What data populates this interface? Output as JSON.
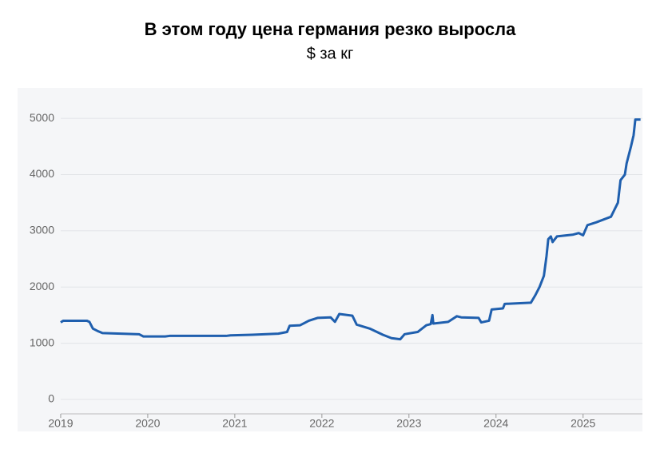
{
  "chart_data": {
    "type": "line",
    "title": "В этом году цена германия резко выросла",
    "subtitle": "$ за кг",
    "x": [
      2019.0,
      2019.03,
      2019.3,
      2019.33,
      2019.37,
      2019.42,
      2019.48,
      2019.9,
      2019.95,
      2020.2,
      2020.25,
      2020.9,
      2020.95,
      2021.2,
      2021.5,
      2021.6,
      2021.63,
      2021.75,
      2021.85,
      2021.95,
      2022.1,
      2022.15,
      2022.2,
      2022.35,
      2022.4,
      2022.55,
      2022.7,
      2022.8,
      2022.9,
      2022.95,
      2023.1,
      2023.2,
      2023.25,
      2023.27,
      2023.28,
      2023.45,
      2023.55,
      2023.6,
      2023.8,
      2023.83,
      2023.92,
      2023.95,
      2024.08,
      2024.1,
      2024.4,
      2024.45,
      2024.5,
      2024.55,
      2024.58,
      2024.6,
      2024.63,
      2024.65,
      2024.7,
      2024.88,
      2024.95,
      2025.0,
      2025.05,
      2025.15,
      2025.32,
      2025.4,
      2025.43,
      2025.48,
      2025.5,
      2025.55,
      2025.58,
      2025.6,
      2025.66
    ],
    "series": [
      {
        "color": "#1f5fae",
        "values": [
          1370,
          1400,
          1400,
          1380,
          1260,
          1220,
          1180,
          1160,
          1120,
          1120,
          1130,
          1130,
          1140,
          1150,
          1170,
          1200,
          1310,
          1320,
          1400,
          1450,
          1460,
          1380,
          1520,
          1490,
          1330,
          1260,
          1150,
          1090,
          1070,
          1160,
          1200,
          1320,
          1340,
          1500,
          1350,
          1380,
          1480,
          1460,
          1450,
          1370,
          1400,
          1600,
          1620,
          1700,
          1720,
          1850,
          2000,
          2200,
          2550,
          2850,
          2900,
          2800,
          2900,
          2930,
          2960,
          2920,
          3100,
          3150,
          3250,
          3500,
          3900,
          4000,
          4200,
          4500,
          4700,
          4980,
          4980
        ]
      }
    ],
    "xlim": [
      2018.95,
      2025.7
    ],
    "xticks": [
      2019,
      2020,
      2021,
      2022,
      2023,
      2024,
      2025
    ],
    "ylim": [
      -200,
      5500
    ],
    "yticks": [
      0,
      1000,
      2000,
      3000,
      4000,
      5000
    ],
    "grid": true
  }
}
